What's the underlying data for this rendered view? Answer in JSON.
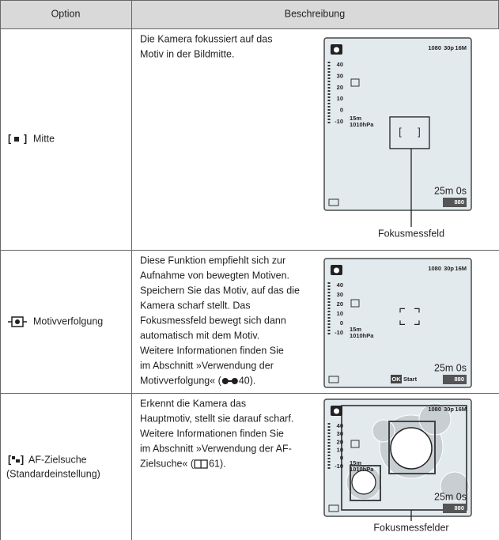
{
  "header": {
    "option": "Option",
    "description": "Beschreibung"
  },
  "screen": {
    "resolution": "1080",
    "fps": "30p",
    "size": "16M",
    "scale": [
      "40",
      "30",
      "20",
      "10",
      "0",
      "-10"
    ],
    "altitude": "15m",
    "pressure": "1010hPa",
    "time": "25m 0s",
    "shots": "880"
  },
  "rows": [
    {
      "option": [
        "Mitte"
      ],
      "description": [
        "Die Kamera fokussiert auf das",
        "Motiv in der Bildmitte."
      ],
      "callout": "Fokusmessfeld"
    },
    {
      "option": [
        "Motivverfolgung"
      ],
      "description": [
        "Diese Funktion empfiehlt sich zur",
        "Aufnahme von bewegten Motiven.",
        "Speichern Sie das Motiv, auf das die",
        "Kamera scharf stellt. Das",
        "Fokusmessfeld bewegt sich dann",
        "automatisch mit dem Motiv.",
        "Weitere Informationen finden Sie",
        "im Abschnitt »Verwendung der"
      ],
      "ref_before": "Motivverfolgung« (",
      "ref_after": "40).",
      "ok": "OK",
      "start": "Start"
    },
    {
      "option": [
        "AF-Zielsuche",
        "(Standardeinstellung)"
      ],
      "description": [
        "Erkennt die Kamera das",
        "Hauptmotiv, stellt sie darauf scharf.",
        "Weitere Informationen finden Sie",
        "im Abschnitt »Verwendung der AF-"
      ],
      "ref_before": "Zielsuche« (",
      "ref_after": "61).",
      "callout": "Fokusmessfelder"
    }
  ]
}
